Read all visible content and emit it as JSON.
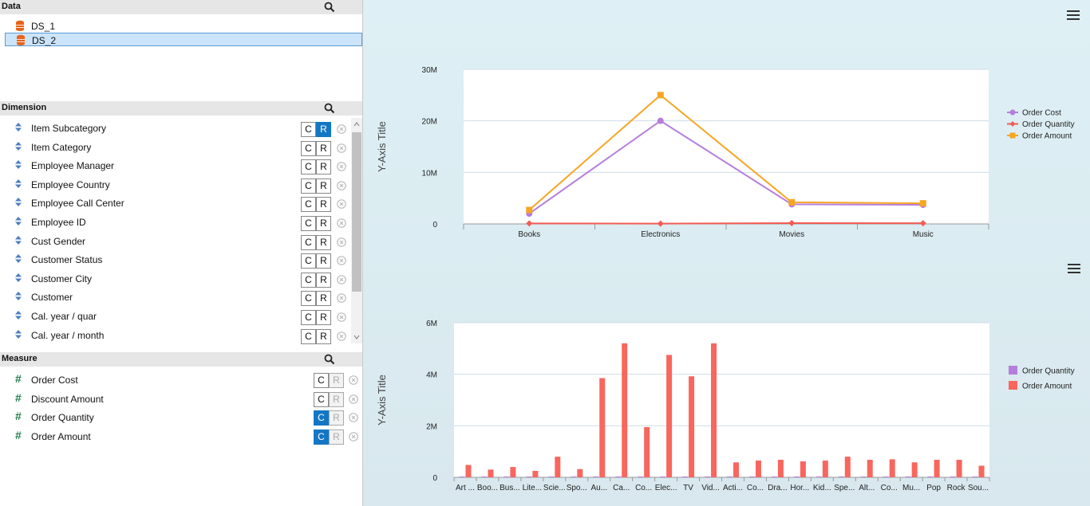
{
  "data_panel": {
    "title": "Data",
    "datasets": [
      {
        "label": "DS_1",
        "selected": false
      },
      {
        "label": "DS_2",
        "selected": true
      }
    ]
  },
  "dimension_panel": {
    "title": "Dimension",
    "items": [
      {
        "label": "Item Subcategory",
        "c": "C",
        "r": "R",
        "r_on": true
      },
      {
        "label": "Item Category",
        "c": "C",
        "r": "R",
        "r_on": false
      },
      {
        "label": "Employee Manager",
        "c": "C",
        "r": "R",
        "r_on": false
      },
      {
        "label": "Employee Country",
        "c": "C",
        "r": "R",
        "r_on": false
      },
      {
        "label": "Employee Call Center",
        "c": "C",
        "r": "R",
        "r_on": false
      },
      {
        "label": "Employee ID",
        "c": "C",
        "r": "R",
        "r_on": false
      },
      {
        "label": "Cust Gender",
        "c": "C",
        "r": "R",
        "r_on": false
      },
      {
        "label": "Customer Status",
        "c": "C",
        "r": "R",
        "r_on": false
      },
      {
        "label": "Customer City",
        "c": "C",
        "r": "R",
        "r_on": false
      },
      {
        "label": "Customer",
        "c": "C",
        "r": "R",
        "r_on": false
      },
      {
        "label": "Cal. year / quar",
        "c": "C",
        "r": "R",
        "r_on": false
      },
      {
        "label": "Cal. year / month",
        "c": "C",
        "r": "R",
        "r_on": false
      }
    ]
  },
  "measure_panel": {
    "title": "Measure",
    "items": [
      {
        "label": "Order Cost",
        "c": "C",
        "r": "R",
        "c_on": false
      },
      {
        "label": "Discount Amount",
        "c": "C",
        "r": "R",
        "c_on": false
      },
      {
        "label": "Order Quantity",
        "c": "C",
        "r": "R",
        "c_on": true
      },
      {
        "label": "Order Amount",
        "c": "C",
        "r": "R",
        "c_on": true
      }
    ]
  },
  "colors": {
    "order_cost": "#b57edc",
    "order_quantity": "#f25c54",
    "order_amount": "#f5a623",
    "bar_quantity": "#b57edc",
    "bar_amount": "#f9665e",
    "accent": "#1377c5"
  },
  "chart_data": [
    {
      "type": "line",
      "ylabel": "Y-Axis Title",
      "categories": [
        "Books",
        "Electronics",
        "Movies",
        "Music"
      ],
      "ylim": [
        0,
        30000000
      ],
      "yticks": [
        "0",
        "10M",
        "20M",
        "30M"
      ],
      "series": [
        {
          "name": "Order Cost",
          "values": [
            2000000,
            20000000,
            3800000,
            3700000
          ]
        },
        {
          "name": "Order Quantity",
          "values": [
            100000,
            60000,
            150000,
            140000
          ]
        },
        {
          "name": "Order Amount",
          "values": [
            2700000,
            25000000,
            4200000,
            4000000
          ]
        }
      ],
      "legend": "right"
    },
    {
      "type": "bar",
      "ylabel": "Y-Axis Title",
      "categories": [
        "Art ...",
        "Boo...",
        "Bus...",
        "Lite...",
        "Scie...",
        "Spo...",
        "Au...",
        "Ca...",
        "Co...",
        "Elec...",
        "TV",
        "Vid...",
        "Acti...",
        "Co...",
        "Dra...",
        "Hor...",
        "Kid...",
        "Spe...",
        "Alt...",
        "Co...",
        "Mu...",
        "Pop",
        "Rock",
        "Sou..."
      ],
      "ylim": [
        0,
        6000000
      ],
      "yticks": [
        "0",
        "2M",
        "4M",
        "6M"
      ],
      "series": [
        {
          "name": "Order Quantity",
          "values": [
            20000,
            20000,
            20000,
            15000,
            20000,
            15000,
            20000,
            30000,
            20000,
            25000,
            20000,
            25000,
            15000,
            15000,
            15000,
            15000,
            15000,
            15000,
            15000,
            15000,
            15000,
            15000,
            15000,
            15000
          ]
        },
        {
          "name": "Order Amount",
          "values": [
            480000,
            300000,
            400000,
            250000,
            800000,
            320000,
            3850000,
            5200000,
            1950000,
            4750000,
            3920000,
            5200000,
            580000,
            650000,
            680000,
            620000,
            650000,
            800000,
            680000,
            700000,
            580000,
            680000,
            680000,
            450000
          ]
        }
      ],
      "legend": "right"
    }
  ]
}
